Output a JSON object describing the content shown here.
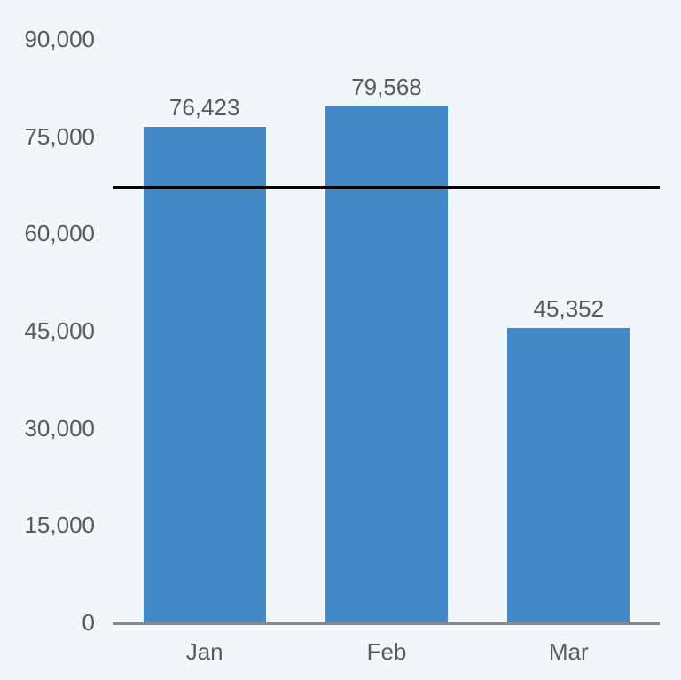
{
  "chart_data": {
    "type": "bar",
    "title": "",
    "xlabel": "",
    "ylabel": "",
    "categories": [
      "Jan",
      "Feb",
      "Mar"
    ],
    "values": [
      76423,
      79568,
      45352
    ],
    "data_labels": [
      "76,423",
      "79,568",
      "45,352"
    ],
    "ylim": [
      0,
      90000
    ],
    "y_tick_values": [
      0,
      15000,
      30000,
      45000,
      60000,
      75000,
      90000
    ],
    "y_tick_labels": [
      "0",
      "15,000",
      "30,000",
      "45,000",
      "60,000",
      "75,000",
      "90,000"
    ],
    "reference_line": {
      "value": 67114,
      "color": "#000000"
    },
    "grid": false,
    "legend": "none",
    "colors": {
      "background": "#f1f6fb",
      "bar": "#4189c7",
      "text": "#595959",
      "axis_line": "#898989"
    }
  }
}
